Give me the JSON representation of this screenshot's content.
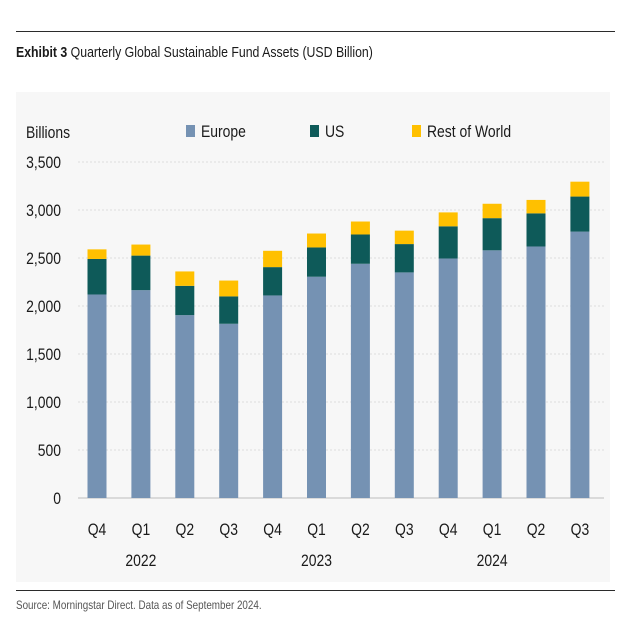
{
  "header": {
    "label": "Exhibit 3",
    "title": "Quarterly Global Sustainable Fund Assets (USD Billion)"
  },
  "source": "Source: Morningstar Direct. Data as of September 2024.",
  "chart_data": {
    "type": "bar",
    "stacked": true,
    "ylabel": "Billions",
    "ylim": [
      0,
      3500
    ],
    "yticks": [
      0,
      500,
      1000,
      1500,
      2000,
      2500,
      3000,
      3500
    ],
    "ytick_labels": [
      "0",
      "500",
      "1,000",
      "1,500",
      "2,000",
      "2,500",
      "3,000",
      "3,500"
    ],
    "grid": true,
    "legend": "top",
    "categories": [
      "Q4",
      "Q1",
      "Q2",
      "Q3",
      "Q4",
      "Q1",
      "Q2",
      "Q3",
      "Q4",
      "Q1",
      "Q2",
      "Q3"
    ],
    "year_labels": [
      "2022",
      "2023",
      "2024"
    ],
    "series": [
      {
        "name": "Europe",
        "color": "#7592b3",
        "values": [
          2120,
          2165,
          1905,
          1815,
          2110,
          2305,
          2440,
          2350,
          2495,
          2580,
          2620,
          2775
        ]
      },
      {
        "name": "US",
        "color": "#0e5a59",
        "values": [
          370,
          360,
          305,
          285,
          295,
          305,
          305,
          295,
          335,
          335,
          345,
          365
        ]
      },
      {
        "name": "Rest of World",
        "color": "#ffc000",
        "values": [
          100,
          115,
          150,
          165,
          170,
          145,
          135,
          140,
          145,
          150,
          140,
          155
        ]
      }
    ]
  }
}
